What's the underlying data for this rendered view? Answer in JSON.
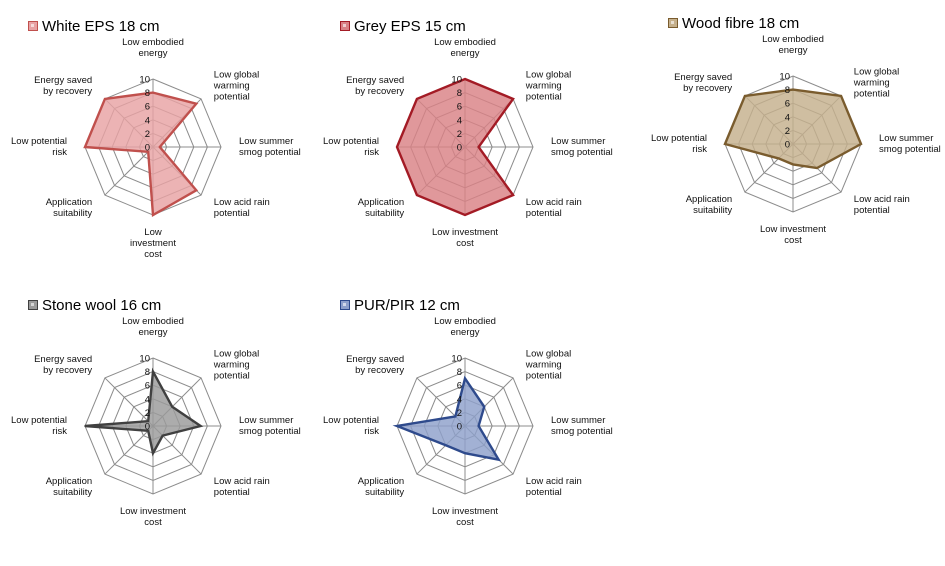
{
  "chart_data": [
    {
      "type": "radar",
      "title": "White EPS 18 cm",
      "color": "#c0504d",
      "fill": "#e8a2a4",
      "axes": [
        "Low embodied energy",
        "Low global warming potential",
        "Low summer smog potential",
        "Low acid rain potential",
        "Low investment cost",
        "Application suitability",
        "Low potential risk",
        "Energy saved by recovery"
      ],
      "axis_label_lines": [
        [
          "Low embodied",
          "energy"
        ],
        [
          "Low global",
          "warming",
          "potential"
        ],
        [
          "Low summer",
          "smog potential"
        ],
        [
          "Low acid rain",
          "potential"
        ],
        [
          "Low",
          "investment",
          "cost"
        ],
        [
          "Application",
          "suitability"
        ],
        [
          "Low potential",
          "risk"
        ],
        [
          "Energy saved",
          "by recovery"
        ]
      ],
      "values": [
        8,
        9,
        1,
        9,
        10,
        1,
        10,
        10
      ],
      "rlim": [
        0,
        10
      ],
      "ticks": [
        0,
        2,
        4,
        6,
        8,
        10
      ]
    },
    {
      "type": "radar",
      "title": "Grey EPS 15 cm",
      "color": "#a31b25",
      "fill": "#d98185",
      "axes": [
        "Low embodied energy",
        "Low global warming potential",
        "Low summer smog potential",
        "Low acid rain potential",
        "Low investment cost",
        "Application suitability",
        "Low potential risk",
        "Energy saved by recovery"
      ],
      "axis_label_lines": [
        [
          "Low embodied",
          "energy"
        ],
        [
          "Low global",
          "warming",
          "potential"
        ],
        [
          "Low summer",
          "smog potential"
        ],
        [
          "Low acid rain",
          "potential"
        ],
        [
          "Low investment",
          "cost"
        ],
        [
          "Application",
          "suitability"
        ],
        [
          "Low potential",
          "risk"
        ],
        [
          "Energy saved",
          "by recovery"
        ]
      ],
      "values": [
        10,
        10,
        2,
        10,
        10,
        10,
        10,
        10
      ],
      "rlim": [
        0,
        10
      ],
      "ticks": [
        0,
        2,
        4,
        6,
        8,
        10
      ]
    },
    {
      "type": "radar",
      "title": "Wood fibre 18 cm",
      "color": "#7a5c2e",
      "fill": "#c5b08c",
      "axes": [
        "Low embodied energy",
        "Low global warming potential",
        "Low summer smog potential",
        "Low acid rain potential",
        "Low investment cost",
        "Application suitability",
        "Low potential risk",
        "Energy saved by recovery"
      ],
      "axis_label_lines": [
        [
          "Low embodied",
          "energy"
        ],
        [
          "Low global",
          "warming",
          "potential"
        ],
        [
          "Low summer",
          "smog potential"
        ],
        [
          "Low acid rain",
          "potential"
        ],
        [
          "Low investment",
          "cost"
        ],
        [
          "Application",
          "suitability"
        ],
        [
          "Low potential",
          "risk"
        ],
        [
          "Energy saved",
          "by recovery"
        ]
      ],
      "values": [
        8,
        10,
        10,
        5,
        3,
        3,
        10,
        10
      ],
      "rlim": [
        0,
        10
      ],
      "ticks": [
        0,
        2,
        4,
        6,
        8,
        10
      ]
    },
    {
      "type": "radar",
      "title": "Stone wool 16 cm",
      "color": "#404040",
      "fill": "#9a9a9a",
      "axes": [
        "Low embodied energy",
        "Low global warming potential",
        "Low summer smog potential",
        "Low acid rain potential",
        "Low investment cost",
        "Application suitability",
        "Low potential risk",
        "Energy saved by recovery"
      ],
      "axis_label_lines": [
        [
          "Low embodied",
          "energy"
        ],
        [
          "Low global",
          "warming",
          "potential"
        ],
        [
          "Low summer",
          "smog potential"
        ],
        [
          "Low acid rain",
          "potential"
        ],
        [
          "Low investment",
          "cost"
        ],
        [
          "Application",
          "suitability"
        ],
        [
          "Low potential",
          "risk"
        ],
        [
          "Energy saved",
          "by recovery"
        ]
      ],
      "values": [
        8,
        4,
        7,
        2,
        4,
        1,
        10,
        1
      ],
      "rlim": [
        0,
        10
      ],
      "ticks": [
        0,
        2,
        4,
        6,
        8,
        10
      ]
    },
    {
      "type": "radar",
      "title": "PUR/PIR 12 cm",
      "color": "#2e4a8c",
      "fill": "#8ea0cb",
      "axes": [
        "Low embodied energy",
        "Low global warming potential",
        "Low summer smog potential",
        "Low acid rain potential",
        "Low investment cost",
        "Application suitability",
        "Low potential risk",
        "Energy saved by recovery"
      ],
      "axis_label_lines": [
        [
          "Low embodied",
          "energy"
        ],
        [
          "Low global",
          "warming",
          "potential"
        ],
        [
          "Low summer",
          "smog potential"
        ],
        [
          "Low acid rain",
          "potential"
        ],
        [
          "Low investment",
          "cost"
        ],
        [
          "Application",
          "suitability"
        ],
        [
          "Low potential",
          "risk"
        ],
        [
          "Energy saved",
          "by recovery"
        ]
      ],
      "values": [
        7,
        4,
        2,
        7,
        4,
        4,
        10,
        2
      ],
      "rlim": [
        0,
        10
      ],
      "ticks": [
        0,
        2,
        4,
        6,
        8,
        10
      ]
    }
  ]
}
